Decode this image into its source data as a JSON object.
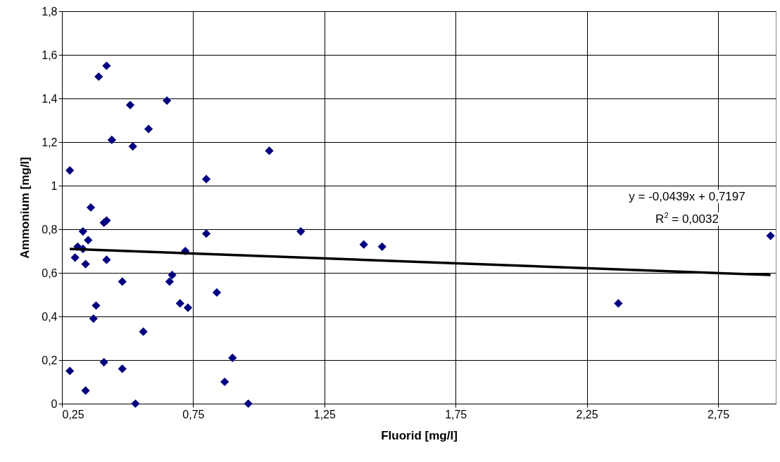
{
  "chart_data": {
    "type": "scatter",
    "xlabel": "Fluorid [mg/l]",
    "ylabel": "Ammonium [mg/l]",
    "xlim": [
      0.25,
      2.97
    ],
    "ylim": [
      0,
      1.8
    ],
    "xticks": [
      {
        "value": 0.25,
        "label": "0,25"
      },
      {
        "value": 0.75,
        "label": "0,75"
      },
      {
        "value": 1.25,
        "label": "1,25"
      },
      {
        "value": 1.75,
        "label": "1,75"
      },
      {
        "value": 2.25,
        "label": "2,25"
      },
      {
        "value": 2.75,
        "label": "2,75"
      }
    ],
    "yticks": [
      0,
      {
        "value": 0.2,
        "label": "0,2"
      },
      {
        "value": 0.4,
        "label": "0,4"
      },
      {
        "value": 0.6,
        "label": "0,6"
      },
      {
        "value": 0.8,
        "label": "0,8"
      },
      1,
      {
        "value": 1.2,
        "label": "1,2"
      },
      {
        "value": 1.4,
        "label": "1,4"
      },
      {
        "value": 1.6,
        "label": "1,6"
      },
      {
        "value": 1.8,
        "label": "1,8"
      }
    ],
    "grid": true,
    "marker": "diamond",
    "series": [
      {
        "color": "#000080",
        "x": [
          0.28,
          0.28,
          0.3,
          0.31,
          0.33,
          0.33,
          0.34,
          0.34,
          0.35,
          0.36,
          0.37,
          0.38,
          0.39,
          0.41,
          0.41,
          0.42,
          0.42,
          0.42,
          0.44,
          0.48,
          0.48,
          0.51,
          0.52,
          0.53,
          0.56,
          0.58,
          0.65,
          0.66,
          0.67,
          0.7,
          0.72,
          0.73,
          0.8,
          0.8,
          0.84,
          0.87,
          0.9,
          0.96,
          1.04,
          1.16,
          1.4,
          1.47,
          2.37,
          2.95
        ],
        "values": [
          1.07,
          0.15,
          0.67,
          0.72,
          0.79,
          0.71,
          0.64,
          0.06,
          0.75,
          0.9,
          0.39,
          0.45,
          1.5,
          0.19,
          0.83,
          0.84,
          0.66,
          1.55,
          1.21,
          0.56,
          0.16,
          1.37,
          1.18,
          0.0,
          0.33,
          1.26,
          1.39,
          0.56,
          0.59,
          0.46,
          0.7,
          0.44,
          1.03,
          0.78,
          0.51,
          0.1,
          0.21,
          0.0,
          1.16,
          0.79,
          0.73,
          0.72,
          0.46,
          0.77
        ]
      },
      {
        "type": "line",
        "color": "#000000",
        "marker": "none",
        "x": [
          0.28,
          2.95
        ],
        "values": [
          0.71,
          0.59
        ]
      }
    ],
    "annotations": [
      "y = -0,0439x + 0,7197",
      "R$^{2}$ = 0,0032"
    ]
  }
}
